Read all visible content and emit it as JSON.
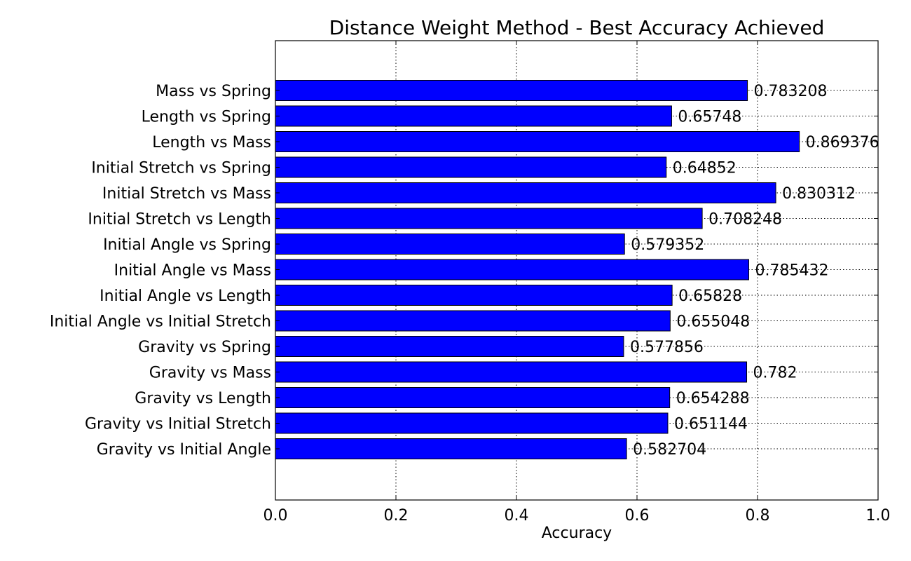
{
  "chart_data": {
    "type": "bar",
    "orientation": "horizontal",
    "title": "Distance Weight Method - Best Accuracy Achieved",
    "xlabel": "Accuracy",
    "ylabel": "",
    "xlim": [
      0.0,
      1.0
    ],
    "x_ticks": [
      "0.0",
      "0.2",
      "0.4",
      "0.6",
      "0.8",
      "1.0"
    ],
    "grid": true,
    "bar_color": "#0000ff",
    "categories": [
      "Mass vs Spring",
      "Length vs Spring",
      "Length vs Mass",
      "Initial Stretch vs Spring",
      "Initial Stretch vs Mass",
      "Initial Stretch vs Length",
      "Initial Angle vs Spring",
      "Initial Angle vs Mass",
      "Initial Angle vs Length",
      "Initial Angle vs Initial Stretch",
      "Gravity vs Spring",
      "Gravity vs Mass",
      "Gravity vs Length",
      "Gravity vs Initial Stretch",
      "Gravity vs Initial Angle"
    ],
    "values": [
      0.783208,
      0.65748,
      0.869376,
      0.64852,
      0.830312,
      0.708248,
      0.579352,
      0.785432,
      0.65828,
      0.655048,
      0.577856,
      0.782,
      0.654288,
      0.651144,
      0.582704
    ],
    "value_labels": [
      "0.783208",
      "0.65748",
      "0.869376",
      "0.64852",
      "0.830312",
      "0.708248",
      "0.579352",
      "0.785432",
      "0.65828",
      "0.655048",
      "0.577856",
      "0.782",
      "0.654288",
      "0.651144",
      "0.582704"
    ]
  }
}
